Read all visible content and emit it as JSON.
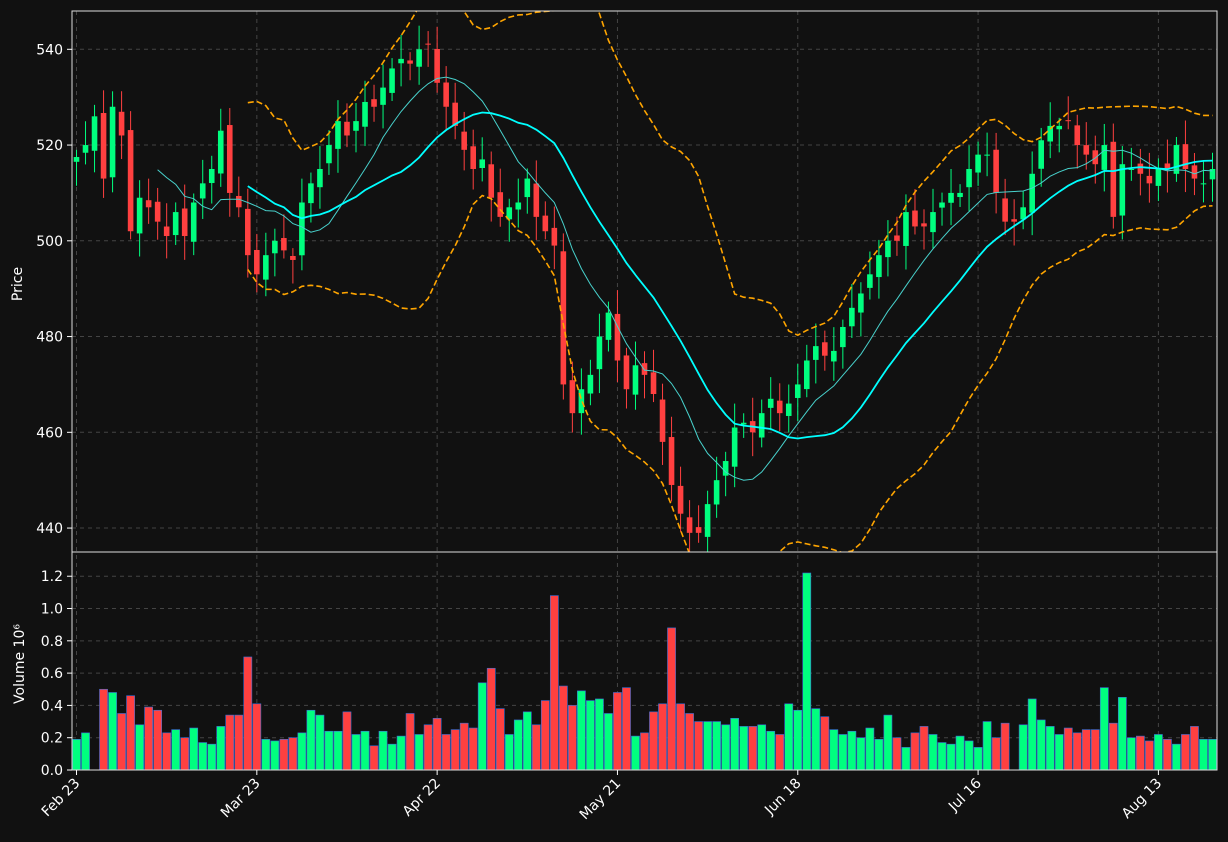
{
  "chart_data": {
    "type": "candlestick",
    "price_panel": {
      "ylabel": "Price",
      "ylim": [
        435,
        548
      ],
      "yticks": [
        440,
        460,
        480,
        500,
        520,
        540
      ],
      "grid": true,
      "series": [
        {
          "name": "",
          "kind": "candles"
        },
        {
          "name": "",
          "kind": "line",
          "color": "#00ffff"
        },
        {
          "name": "",
          "kind": "line",
          "color": "#48d1cc"
        },
        {
          "name": "",
          "kind": "band",
          "color": "#ffa500"
        }
      ]
    },
    "volume_panel": {
      "ylabel": "Volume  10⁶",
      "ylim": [
        0,
        1.35
      ],
      "yticks": [
        "0.0",
        "0.2",
        "0.4",
        "0.6",
        "0.8",
        "1.0",
        "1.2"
      ],
      "grid": true
    },
    "x_tick_labels": [
      "Feb 23",
      "Mar 23",
      "Apr 22",
      "May 21",
      "Jun 18",
      "Jul 16",
      "Aug 13"
    ],
    "x_tick_index": [
      0,
      20,
      40,
      60,
      80,
      100,
      120
    ],
    "n_days": 127,
    "colors": {
      "up": "#00ff7f",
      "down": "#ff4040",
      "background": "#111111",
      "grid": "#444444",
      "text": "#ffffff"
    },
    "closes": [
      517.5,
      520,
      526,
      513,
      528,
      522,
      502,
      509,
      507,
      504,
      501,
      506,
      501,
      508,
      512,
      515,
      523,
      510,
      507,
      497,
      493,
      497,
      500,
      498,
      496,
      508,
      512,
      515,
      520,
      525,
      522,
      525,
      529,
      528,
      532,
      536,
      538,
      537,
      540,
      541,
      533,
      528,
      524,
      519,
      515,
      517,
      509,
      505,
      507,
      508,
      513,
      505,
      502,
      499,
      470,
      464,
      469,
      472,
      480,
      485,
      475,
      469,
      474,
      472,
      468,
      458,
      449,
      443,
      439,
      439,
      445,
      450,
      454,
      461,
      462,
      460,
      464,
      467,
      464,
      466,
      470,
      475,
      478,
      476,
      477,
      482,
      486,
      489,
      493,
      497,
      500,
      500,
      506,
      503,
      503,
      506,
      508,
      510,
      510,
      515,
      518,
      518,
      510,
      504,
      504,
      507,
      514,
      521,
      524,
      524,
      525,
      520,
      518,
      516,
      520,
      505,
      516,
      515,
      514,
      512,
      515,
      515,
      520,
      515,
      513,
      512,
      515
    ],
    "volumes": [
      0.19,
      0.23,
      0,
      0.5,
      0.48,
      0.35,
      0.46,
      0.28,
      0.39,
      0.37,
      0.23,
      0.25,
      0.2,
      0.26,
      0.17,
      0.16,
      0.27,
      0.34,
      0.34,
      0.7,
      0.41,
      0.19,
      0.18,
      0.19,
      0.2,
      0.23,
      0.37,
      0.34,
      0.24,
      0.24,
      0.36,
      0.22,
      0.24,
      0.15,
      0.24,
      0.16,
      0.21,
      0.35,
      0.22,
      0.28,
      0.32,
      0.22,
      0.25,
      0.29,
      0.26,
      0.54,
      0.63,
      0.38,
      0.22,
      0.31,
      0.36,
      0.28,
      0.43,
      1.08,
      0.52,
      0.4,
      0.49,
      0.43,
      0.44,
      0.35,
      0.48,
      0.51,
      0.21,
      0.23,
      0.36,
      0.41,
      0.88,
      0.41,
      0.35,
      0.3,
      0.3,
      0.3,
      0.28,
      0.32,
      0.27,
      0.27,
      0.28,
      0.24,
      0.22,
      0.41,
      0.37,
      1.22,
      0.38,
      0.33,
      0.25,
      0.22,
      0.24,
      0.2,
      0.26,
      0.19,
      0.34,
      0.2,
      0.14,
      0.23,
      0.27,
      0.22,
      0.17,
      0.16,
      0.21,
      0.18,
      0.14,
      0.3,
      0.2,
      0.29,
      0,
      0.28,
      0.44,
      0.31,
      0.27,
      0.22,
      0.26,
      0.23,
      0.25,
      0.25,
      0.51,
      0.29,
      0.45,
      0.2,
      0.21,
      0.18,
      0.22,
      0.19,
      0.16,
      0.22,
      0.27,
      0.19,
      0.19
    ]
  }
}
